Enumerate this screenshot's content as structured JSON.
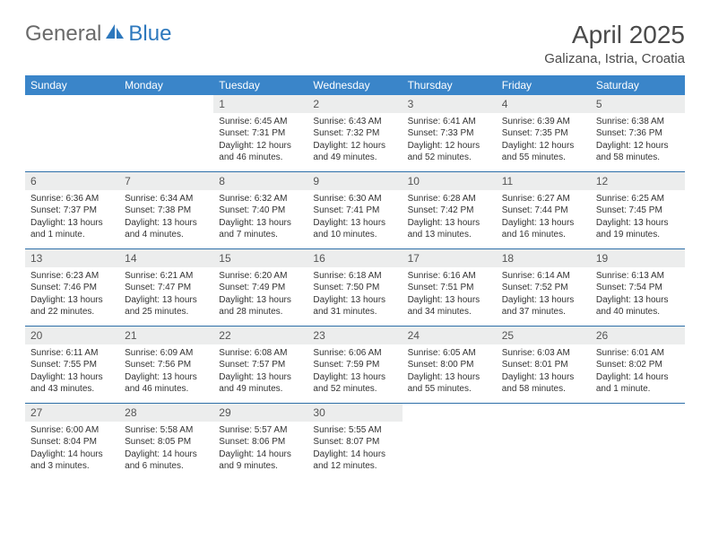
{
  "logo": {
    "general": "General",
    "blue": "Blue"
  },
  "title": "April 2025",
  "location": "Galizana, Istria, Croatia",
  "colors": {
    "header_bg": "#3a85c9",
    "header_text": "#ffffff",
    "daynum_bg": "#eceded",
    "week_border": "#2d6fa8",
    "logo_gray": "#6a6a6a",
    "logo_blue": "#2d78bd",
    "title_color": "#4a4a4a"
  },
  "dow": [
    "Sunday",
    "Monday",
    "Tuesday",
    "Wednesday",
    "Thursday",
    "Friday",
    "Saturday"
  ],
  "weeks": [
    [
      {
        "n": "",
        "sr": "",
        "ss": "",
        "dl": ""
      },
      {
        "n": "",
        "sr": "",
        "ss": "",
        "dl": ""
      },
      {
        "n": "1",
        "sr": "Sunrise: 6:45 AM",
        "ss": "Sunset: 7:31 PM",
        "dl": "Daylight: 12 hours and 46 minutes."
      },
      {
        "n": "2",
        "sr": "Sunrise: 6:43 AM",
        "ss": "Sunset: 7:32 PM",
        "dl": "Daylight: 12 hours and 49 minutes."
      },
      {
        "n": "3",
        "sr": "Sunrise: 6:41 AM",
        "ss": "Sunset: 7:33 PM",
        "dl": "Daylight: 12 hours and 52 minutes."
      },
      {
        "n": "4",
        "sr": "Sunrise: 6:39 AM",
        "ss": "Sunset: 7:35 PM",
        "dl": "Daylight: 12 hours and 55 minutes."
      },
      {
        "n": "5",
        "sr": "Sunrise: 6:38 AM",
        "ss": "Sunset: 7:36 PM",
        "dl": "Daylight: 12 hours and 58 minutes."
      }
    ],
    [
      {
        "n": "6",
        "sr": "Sunrise: 6:36 AM",
        "ss": "Sunset: 7:37 PM",
        "dl": "Daylight: 13 hours and 1 minute."
      },
      {
        "n": "7",
        "sr": "Sunrise: 6:34 AM",
        "ss": "Sunset: 7:38 PM",
        "dl": "Daylight: 13 hours and 4 minutes."
      },
      {
        "n": "8",
        "sr": "Sunrise: 6:32 AM",
        "ss": "Sunset: 7:40 PM",
        "dl": "Daylight: 13 hours and 7 minutes."
      },
      {
        "n": "9",
        "sr": "Sunrise: 6:30 AM",
        "ss": "Sunset: 7:41 PM",
        "dl": "Daylight: 13 hours and 10 minutes."
      },
      {
        "n": "10",
        "sr": "Sunrise: 6:28 AM",
        "ss": "Sunset: 7:42 PM",
        "dl": "Daylight: 13 hours and 13 minutes."
      },
      {
        "n": "11",
        "sr": "Sunrise: 6:27 AM",
        "ss": "Sunset: 7:44 PM",
        "dl": "Daylight: 13 hours and 16 minutes."
      },
      {
        "n": "12",
        "sr": "Sunrise: 6:25 AM",
        "ss": "Sunset: 7:45 PM",
        "dl": "Daylight: 13 hours and 19 minutes."
      }
    ],
    [
      {
        "n": "13",
        "sr": "Sunrise: 6:23 AM",
        "ss": "Sunset: 7:46 PM",
        "dl": "Daylight: 13 hours and 22 minutes."
      },
      {
        "n": "14",
        "sr": "Sunrise: 6:21 AM",
        "ss": "Sunset: 7:47 PM",
        "dl": "Daylight: 13 hours and 25 minutes."
      },
      {
        "n": "15",
        "sr": "Sunrise: 6:20 AM",
        "ss": "Sunset: 7:49 PM",
        "dl": "Daylight: 13 hours and 28 minutes."
      },
      {
        "n": "16",
        "sr": "Sunrise: 6:18 AM",
        "ss": "Sunset: 7:50 PM",
        "dl": "Daylight: 13 hours and 31 minutes."
      },
      {
        "n": "17",
        "sr": "Sunrise: 6:16 AM",
        "ss": "Sunset: 7:51 PM",
        "dl": "Daylight: 13 hours and 34 minutes."
      },
      {
        "n": "18",
        "sr": "Sunrise: 6:14 AM",
        "ss": "Sunset: 7:52 PM",
        "dl": "Daylight: 13 hours and 37 minutes."
      },
      {
        "n": "19",
        "sr": "Sunrise: 6:13 AM",
        "ss": "Sunset: 7:54 PM",
        "dl": "Daylight: 13 hours and 40 minutes."
      }
    ],
    [
      {
        "n": "20",
        "sr": "Sunrise: 6:11 AM",
        "ss": "Sunset: 7:55 PM",
        "dl": "Daylight: 13 hours and 43 minutes."
      },
      {
        "n": "21",
        "sr": "Sunrise: 6:09 AM",
        "ss": "Sunset: 7:56 PM",
        "dl": "Daylight: 13 hours and 46 minutes."
      },
      {
        "n": "22",
        "sr": "Sunrise: 6:08 AM",
        "ss": "Sunset: 7:57 PM",
        "dl": "Daylight: 13 hours and 49 minutes."
      },
      {
        "n": "23",
        "sr": "Sunrise: 6:06 AM",
        "ss": "Sunset: 7:59 PM",
        "dl": "Daylight: 13 hours and 52 minutes."
      },
      {
        "n": "24",
        "sr": "Sunrise: 6:05 AM",
        "ss": "Sunset: 8:00 PM",
        "dl": "Daylight: 13 hours and 55 minutes."
      },
      {
        "n": "25",
        "sr": "Sunrise: 6:03 AM",
        "ss": "Sunset: 8:01 PM",
        "dl": "Daylight: 13 hours and 58 minutes."
      },
      {
        "n": "26",
        "sr": "Sunrise: 6:01 AM",
        "ss": "Sunset: 8:02 PM",
        "dl": "Daylight: 14 hours and 1 minute."
      }
    ],
    [
      {
        "n": "27",
        "sr": "Sunrise: 6:00 AM",
        "ss": "Sunset: 8:04 PM",
        "dl": "Daylight: 14 hours and 3 minutes."
      },
      {
        "n": "28",
        "sr": "Sunrise: 5:58 AM",
        "ss": "Sunset: 8:05 PM",
        "dl": "Daylight: 14 hours and 6 minutes."
      },
      {
        "n": "29",
        "sr": "Sunrise: 5:57 AM",
        "ss": "Sunset: 8:06 PM",
        "dl": "Daylight: 14 hours and 9 minutes."
      },
      {
        "n": "30",
        "sr": "Sunrise: 5:55 AM",
        "ss": "Sunset: 8:07 PM",
        "dl": "Daylight: 14 hours and 12 minutes."
      },
      {
        "n": "",
        "sr": "",
        "ss": "",
        "dl": ""
      },
      {
        "n": "",
        "sr": "",
        "ss": "",
        "dl": ""
      },
      {
        "n": "",
        "sr": "",
        "ss": "",
        "dl": ""
      }
    ]
  ]
}
